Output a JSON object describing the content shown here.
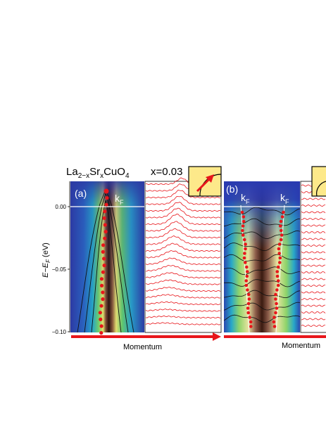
{
  "figure": {
    "compound": {
      "base": "La",
      "sub1": "2−x",
      "mid": "Sr",
      "sub2": "x",
      "end": "CuO",
      "sub3": "4"
    },
    "doping": "x=0.03",
    "y_axis": {
      "label_main": "E−E",
      "label_sub": "F",
      "label_unit": " (eV)",
      "ticks": [
        "0.00",
        "−0.05",
        "−0.10"
      ]
    },
    "x_axis_label": "Momentum",
    "panels": [
      {
        "tag": "(a)",
        "kf_labels": [
          {
            "main": "k",
            "sub": "F"
          }
        ]
      },
      {
        "tag": "(b)",
        "kf_labels": [
          {
            "main": "k",
            "sub": "F"
          },
          {
            "main": "k",
            "sub": "F"
          }
        ]
      }
    ],
    "colors": {
      "curves": "#e8161b",
      "arrow": "#e8161b",
      "inset_bg": "#fde98a",
      "map_low": "#2a3aa8",
      "map_high": "#1a0a05"
    }
  }
}
